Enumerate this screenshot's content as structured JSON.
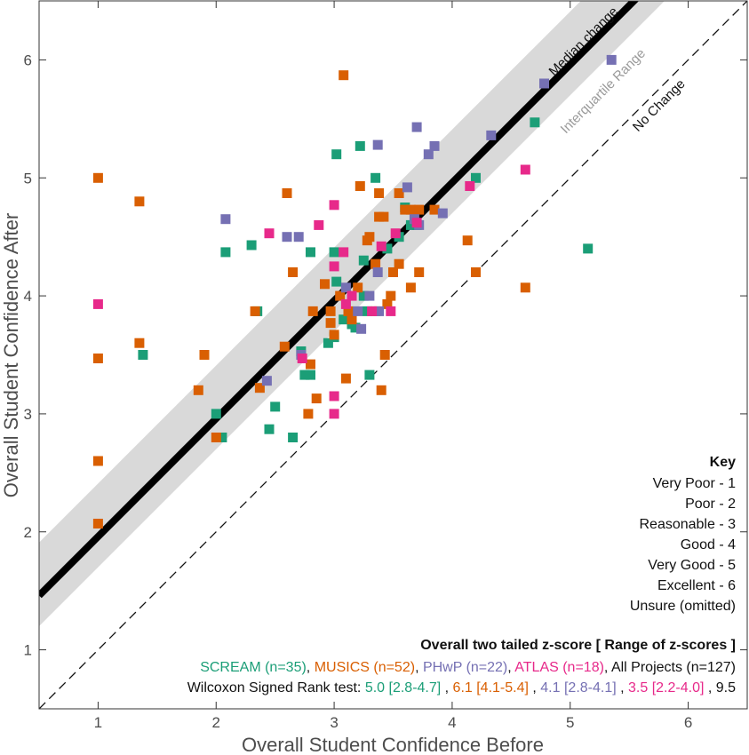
{
  "chart_data": {
    "type": "scatter",
    "xlabel": "Overall Student Confidence Before",
    "ylabel": "Overall Student Confidence After",
    "xlim": [
      0.5,
      6.5
    ],
    "ylim": [
      0.5,
      6.5
    ],
    "xticks": [
      "1",
      "2",
      "3",
      "4",
      "5",
      "6"
    ],
    "yticks": [
      "1",
      "2",
      "3",
      "4",
      "5",
      "6"
    ],
    "grid": false,
    "median_change_offset": 0.96,
    "iqr_offsets": [
      0.7,
      1.41
    ],
    "annotations": {
      "median": "Median change",
      "iqr": "Interquartile Range",
      "no_change": "No Change"
    },
    "key": {
      "title": "Key",
      "items": [
        "Very Poor - 1",
        "Poor - 2",
        "Reasonable - 3",
        "Good - 4",
        "Very Good - 5",
        "Excellent - 6",
        "Unsure (omitted)"
      ]
    },
    "legend": {
      "title": "Overall two tailed z-score [ Range of z-scores ]",
      "series_labels": [
        "SCREAM (n=35)",
        "MUSICS (n=52)",
        "PHwP (n=22)",
        "ATLAS (n=18)",
        "All Projects (n=127)"
      ],
      "test_label": "Wilcoxon Signed Rank test:",
      "zscores": [
        "5.0 [2.8-4.7]",
        "6.1 [4.1-5.4]",
        "4.1 [2.8-4.1]",
        "3.5 [2.2-4.0]",
        "9.5"
      ]
    },
    "colors": {
      "SCREAM": "#1b9e77",
      "MUSICS": "#d95f02",
      "PHwP": "#7570b3",
      "ATLAS": "#e7298a",
      "All": "#000000",
      "band": "#d9d9d9"
    },
    "series": [
      {
        "name": "SCREAM",
        "points": [
          [
            1.38,
            3.5
          ],
          [
            2.0,
            3.0
          ],
          [
            2.05,
            2.8
          ],
          [
            2.08,
            4.37
          ],
          [
            2.3,
            4.43
          ],
          [
            2.35,
            3.87
          ],
          [
            2.45,
            2.87
          ],
          [
            2.5,
            3.06
          ],
          [
            2.65,
            2.8
          ],
          [
            2.72,
            3.53
          ],
          [
            2.75,
            3.33
          ],
          [
            2.8,
            3.33
          ],
          [
            2.8,
            4.37
          ],
          [
            3.0,
            3.65
          ],
          [
            3.0,
            4.37
          ],
          [
            3.02,
            4.12
          ],
          [
            3.02,
            5.2
          ],
          [
            3.08,
            3.8
          ],
          [
            3.18,
            3.73
          ],
          [
            3.22,
            5.27
          ],
          [
            3.25,
            4.0
          ],
          [
            3.28,
            3.87
          ],
          [
            3.25,
            4.3
          ],
          [
            3.3,
            3.33
          ],
          [
            3.35,
            5.0
          ],
          [
            3.55,
            4.5
          ],
          [
            3.6,
            4.75
          ],
          [
            3.65,
            4.6
          ],
          [
            3.7,
            4.6
          ],
          [
            4.2,
            5.0
          ],
          [
            4.7,
            5.47
          ],
          [
            5.15,
            4.4
          ],
          [
            3.15,
            3.76
          ],
          [
            2.95,
            3.6
          ],
          [
            3.45,
            4.4
          ]
        ]
      },
      {
        "name": "MUSICS",
        "points": [
          [
            1.0,
            5.0
          ],
          [
            1.0,
            3.47
          ],
          [
            1.0,
            2.6
          ],
          [
            1.0,
            2.07
          ],
          [
            1.35,
            4.8
          ],
          [
            1.35,
            3.6
          ],
          [
            1.85,
            3.2
          ],
          [
            1.9,
            3.5
          ],
          [
            2.0,
            2.8
          ],
          [
            2.33,
            3.87
          ],
          [
            2.37,
            3.22
          ],
          [
            2.58,
            3.57
          ],
          [
            2.6,
            4.87
          ],
          [
            2.65,
            4.2
          ],
          [
            2.78,
            3.0
          ],
          [
            2.8,
            3.42
          ],
          [
            2.82,
            3.87
          ],
          [
            2.85,
            3.13
          ],
          [
            2.92,
            4.1
          ],
          [
            2.97,
            3.87
          ],
          [
            2.97,
            3.77
          ],
          [
            3.0,
            3.67
          ],
          [
            3.05,
            4.0
          ],
          [
            3.08,
            5.87
          ],
          [
            3.1,
            3.3
          ],
          [
            3.12,
            3.87
          ],
          [
            3.15,
            3.8
          ],
          [
            3.2,
            4.07
          ],
          [
            3.22,
            4.93
          ],
          [
            3.28,
            4.47
          ],
          [
            3.3,
            4.5
          ],
          [
            3.35,
            4.27
          ],
          [
            3.35,
            3.87
          ],
          [
            3.38,
            4.87
          ],
          [
            3.38,
            4.67
          ],
          [
            3.4,
            3.2
          ],
          [
            3.42,
            4.67
          ],
          [
            3.43,
            3.5
          ],
          [
            3.45,
            3.93
          ],
          [
            3.48,
            4.0
          ],
          [
            3.5,
            4.2
          ],
          [
            3.55,
            4.87
          ],
          [
            3.55,
            4.27
          ],
          [
            3.6,
            4.73
          ],
          [
            3.65,
            4.07
          ],
          [
            3.65,
            4.73
          ],
          [
            3.72,
            4.2
          ],
          [
            3.72,
            4.73
          ],
          [
            3.85,
            4.73
          ],
          [
            4.13,
            4.47
          ],
          [
            4.2,
            4.2
          ],
          [
            4.62,
            4.07
          ]
        ]
      },
      {
        "name": "PHwP",
        "points": [
          [
            2.08,
            4.65
          ],
          [
            2.43,
            3.28
          ],
          [
            2.6,
            4.5
          ],
          [
            2.7,
            4.5
          ],
          [
            2.72,
            3.5
          ],
          [
            3.1,
            4.07
          ],
          [
            3.2,
            3.87
          ],
          [
            3.23,
            3.72
          ],
          [
            3.3,
            4.0
          ],
          [
            3.37,
            4.2
          ],
          [
            3.37,
            5.28
          ],
          [
            3.38,
            3.87
          ],
          [
            3.62,
            4.92
          ],
          [
            3.7,
            5.43
          ],
          [
            3.72,
            4.6
          ],
          [
            3.8,
            5.2
          ],
          [
            3.85,
            5.27
          ],
          [
            3.92,
            4.7
          ],
          [
            4.33,
            5.36
          ],
          [
            4.78,
            5.8
          ],
          [
            5.35,
            6.0
          ],
          [
            3.68,
            4.65
          ]
        ]
      },
      {
        "name": "ATLAS",
        "points": [
          [
            1.0,
            3.93
          ],
          [
            2.45,
            4.53
          ],
          [
            2.73,
            3.47
          ],
          [
            2.87,
            4.6
          ],
          [
            3.0,
            4.77
          ],
          [
            3.0,
            4.25
          ],
          [
            3.0,
            3.15
          ],
          [
            3.0,
            3.0
          ],
          [
            3.08,
            4.37
          ],
          [
            3.1,
            3.93
          ],
          [
            3.15,
            4.0
          ],
          [
            3.32,
            3.87
          ],
          [
            3.48,
            3.87
          ],
          [
            3.52,
            4.53
          ],
          [
            3.7,
            4.62
          ],
          [
            4.15,
            4.93
          ],
          [
            4.62,
            5.07
          ],
          [
            3.4,
            4.42
          ]
        ]
      }
    ]
  }
}
